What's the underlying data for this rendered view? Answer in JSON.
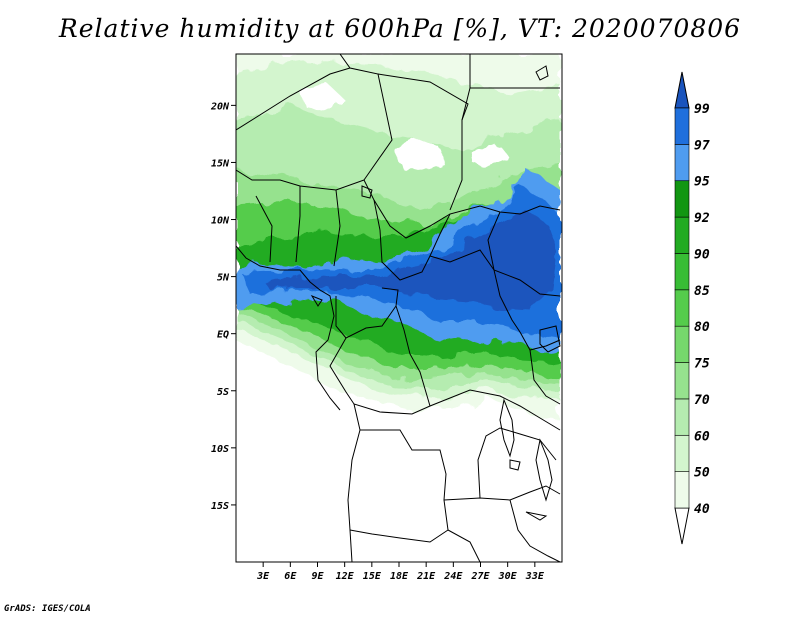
{
  "title": "Relative humidity at 600hPa [%], VT: 2020070806",
  "credit": "GrADS: IGES/COLA",
  "map": {
    "lon_range": [
      0,
      36
    ],
    "lat_range": [
      -20,
      24.5
    ],
    "lon_ticks": [
      {
        "value": 3,
        "label": "3E"
      },
      {
        "value": 6,
        "label": "6E"
      },
      {
        "value": 9,
        "label": "9E"
      },
      {
        "value": 12,
        "label": "12E"
      },
      {
        "value": 15,
        "label": "15E"
      },
      {
        "value": 18,
        "label": "18E"
      },
      {
        "value": 21,
        "label": "21E"
      },
      {
        "value": 24,
        "label": "24E"
      },
      {
        "value": 27,
        "label": "27E"
      },
      {
        "value": 30,
        "label": "30E"
      },
      {
        "value": 33,
        "label": "33E"
      }
    ],
    "lat_ticks": [
      {
        "value": 20,
        "label": "20N"
      },
      {
        "value": 15,
        "label": "15N"
      },
      {
        "value": 10,
        "label": "10N"
      },
      {
        "value": 5,
        "label": "5N"
      },
      {
        "value": 0,
        "label": "EQ"
      },
      {
        "value": -5,
        "label": "5S"
      },
      {
        "value": -10,
        "label": "10S"
      },
      {
        "value": -15,
        "label": "15S"
      }
    ]
  },
  "colorbar": {
    "levels": [
      "40",
      "50",
      "60",
      "70",
      "75",
      "80",
      "85",
      "90",
      "92",
      "95",
      "97",
      "99"
    ],
    "colors": [
      "#eefbea",
      "#d3f5ce",
      "#b5ecb0",
      "#96e28e",
      "#76d86c",
      "#55cc4c",
      "#38bd35",
      "#22ab22",
      "#129612",
      "#4f9cf0",
      "#1f6fdc",
      "#1f5fcf",
      "#1a54bd"
    ]
  }
}
